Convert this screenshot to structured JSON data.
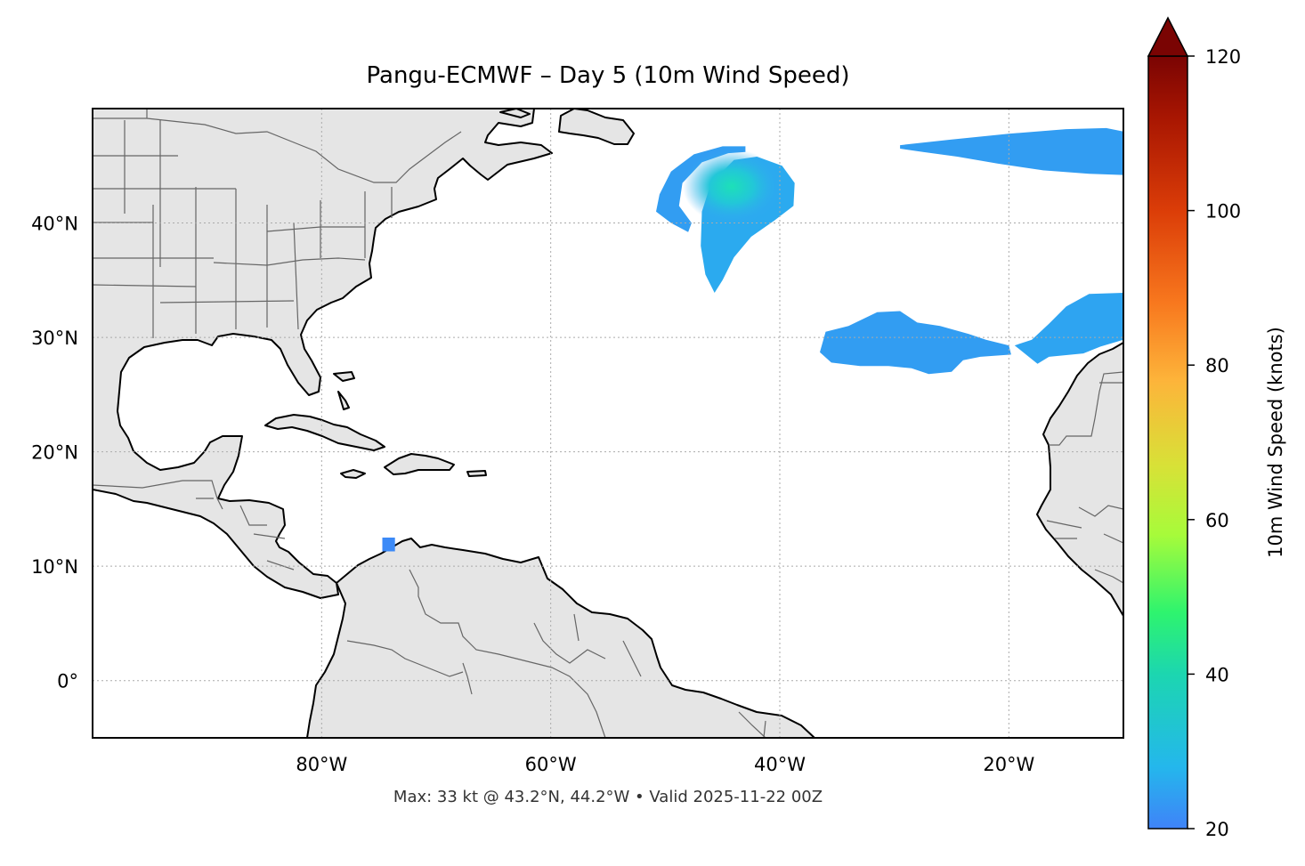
{
  "chart_data": {
    "type": "heatmap",
    "title": "Pangu-ECMWF – Day 5 (10m Wind Speed)",
    "footnote": "Max: 33 kt @ 43.2°N, 44.2°W • Valid 2025-11-22 00Z",
    "x_range_lon": [
      -100,
      -10
    ],
    "y_range_lat": [
      -5,
      50
    ],
    "x_ticks": [
      {
        "value": -80,
        "label": "80°W"
      },
      {
        "value": -60,
        "label": "60°W"
      },
      {
        "value": -40,
        "label": "40°W"
      },
      {
        "value": -20,
        "label": "20°W"
      }
    ],
    "y_ticks": [
      {
        "value": 40,
        "label": "40°N"
      },
      {
        "value": 30,
        "label": "30°N"
      },
      {
        "value": 20,
        "label": "20°N"
      },
      {
        "value": 10,
        "label": "10°N"
      },
      {
        "value": 0,
        "label": "0°"
      }
    ],
    "grid": true,
    "colorbar": {
      "label": "10m Wind Speed (knots)",
      "min": 20,
      "max": 120,
      "ticks": [
        {
          "value": 20,
          "label": "20"
        },
        {
          "value": 40,
          "label": "40"
        },
        {
          "value": 60,
          "label": "60"
        },
        {
          "value": 80,
          "label": "80"
        },
        {
          "value": 100,
          "label": "100"
        },
        {
          "value": 120,
          "label": "120"
        }
      ],
      "extend": "max"
    },
    "wind_regions": [
      {
        "name": "crescent",
        "points": [
          [
            -43,
            46.7
          ],
          [
            -45,
            46.7
          ],
          [
            -47.5,
            46
          ],
          [
            -49.5,
            44.5
          ],
          [
            -50.5,
            42.5
          ],
          [
            -50.8,
            41
          ],
          [
            -49.5,
            40
          ],
          [
            -48,
            39.2
          ],
          [
            -47.7,
            40
          ],
          [
            -48.8,
            41.5
          ],
          [
            -48.5,
            43.5
          ],
          [
            -46.8,
            45.3
          ],
          [
            -44.5,
            46.1
          ],
          [
            -43,
            46.2
          ]
        ],
        "speed_kt": 24
      },
      {
        "name": "core-low",
        "points": [
          [
            -44,
            45.5
          ],
          [
            -42,
            45.8
          ],
          [
            -39.8,
            45
          ],
          [
            -38.7,
            43.5
          ],
          [
            -38.8,
            41.5
          ],
          [
            -40.5,
            40.2
          ],
          [
            -42.5,
            38.8
          ],
          [
            -44,
            37
          ],
          [
            -45,
            35
          ],
          [
            -45.7,
            33.9
          ],
          [
            -46.5,
            35.5
          ],
          [
            -46.9,
            38
          ],
          [
            -46.8,
            41
          ],
          [
            -46,
            43.5
          ]
        ],
        "speed_kt": 26
      },
      {
        "name": "core-max",
        "center": [
          -44.2,
          43.2
        ],
        "speed_kt": 33
      },
      {
        "name": "central-band",
        "points": [
          [
            -36,
            30.5
          ],
          [
            -34,
            31
          ],
          [
            -31.5,
            32.2
          ],
          [
            -29.5,
            32.3
          ],
          [
            -28,
            31.3
          ],
          [
            -26,
            31
          ],
          [
            -23.5,
            30.3
          ],
          [
            -22,
            29.8
          ],
          [
            -20,
            29.3
          ],
          [
            -19.8,
            28.5
          ],
          [
            -22.5,
            28.3
          ],
          [
            -24,
            28
          ],
          [
            -25,
            27
          ],
          [
            -27,
            26.8
          ],
          [
            -28.5,
            27.3
          ],
          [
            -30.5,
            27.5
          ],
          [
            -33,
            27.5
          ],
          [
            -35.5,
            27.8
          ],
          [
            -36.5,
            28.7
          ]
        ],
        "speed_kt": 24
      },
      {
        "name": "east-band",
        "points": [
          [
            -19.5,
            29.3
          ],
          [
            -18,
            29.8
          ],
          [
            -16.5,
            31.2
          ],
          [
            -15,
            32.7
          ],
          [
            -13,
            33.8
          ],
          [
            -10,
            33.9
          ],
          [
            -10,
            29.8
          ],
          [
            -12,
            29.2
          ],
          [
            -13.5,
            28.6
          ],
          [
            -16.5,
            28.3
          ],
          [
            -17.5,
            27.7
          ],
          [
            -18.5,
            28.5
          ]
        ],
        "speed_kt": 25
      },
      {
        "name": "north-band",
        "points": [
          [
            -29.5,
            46.8
          ],
          [
            -25,
            47.3
          ],
          [
            -20,
            47.8
          ],
          [
            -15,
            48.2
          ],
          [
            -11.5,
            48.3
          ],
          [
            -10,
            48
          ],
          [
            -10,
            44.2
          ],
          [
            -13,
            44.3
          ],
          [
            -17,
            44.6
          ],
          [
            -21,
            45.2
          ],
          [
            -24.5,
            45.8
          ],
          [
            -27.5,
            46.2
          ],
          [
            -29.5,
            46.5
          ]
        ],
        "speed_kt": 24
      },
      {
        "name": "speck",
        "points": [
          [
            -74.7,
            12.5
          ],
          [
            -73.6,
            12.5
          ],
          [
            -73.6,
            11.3
          ],
          [
            -74.7,
            11.3
          ]
        ],
        "speed_kt": 21
      }
    ]
  }
}
